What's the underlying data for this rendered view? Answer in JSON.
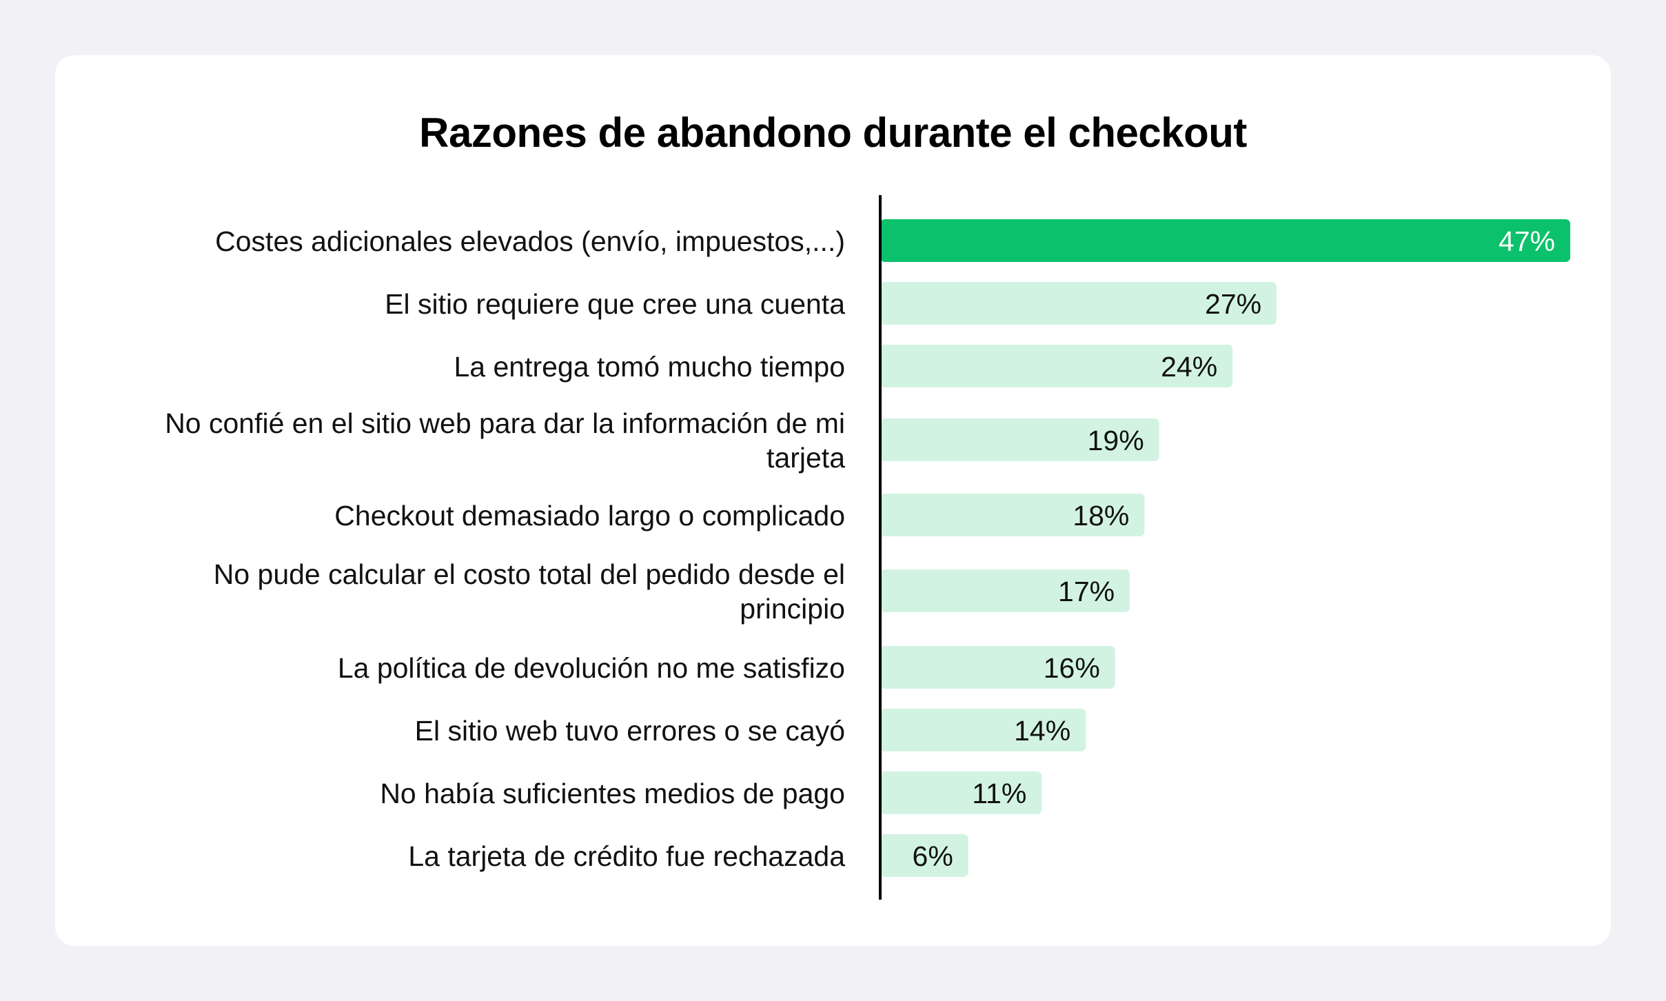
{
  "chart_data": {
    "type": "bar",
    "orientation": "horizontal",
    "title": "Razones de abandono durante el checkout",
    "categories": [
      [
        "Costes adicionales elevados (envío, impuestos,...)"
      ],
      [
        "El sitio requiere que cree una cuenta"
      ],
      [
        "La entrega tomó mucho tiempo"
      ],
      [
        "No confié en el sitio web para dar la información de mi",
        "tarjeta"
      ],
      [
        "Checkout demasiado largo o complicado"
      ],
      [
        "No pude calcular el costo total del pedido desde el",
        "principio"
      ],
      [
        "La política de devolución no me satisfizo"
      ],
      [
        "El sitio web tuvo errores o se cayó"
      ],
      [
        "No había suficientes medios de pago"
      ],
      [
        "La tarjeta de crédito fue rechazada"
      ]
    ],
    "values": [
      47,
      27,
      24,
      19,
      18,
      17,
      16,
      14,
      11,
      6
    ],
    "value_labels": [
      "47%",
      "27%",
      "24%",
      "19%",
      "18%",
      "17%",
      "16%",
      "14%",
      "11%",
      "6%"
    ],
    "unit": "%",
    "highlight_index": 0,
    "colors": {
      "highlight_bar": "#0cc16b",
      "bar": "#d2f3e2",
      "highlight_label": "#ffffff",
      "label": "#111111",
      "axis": "#000000"
    },
    "grid": false,
    "legend": "none"
  }
}
